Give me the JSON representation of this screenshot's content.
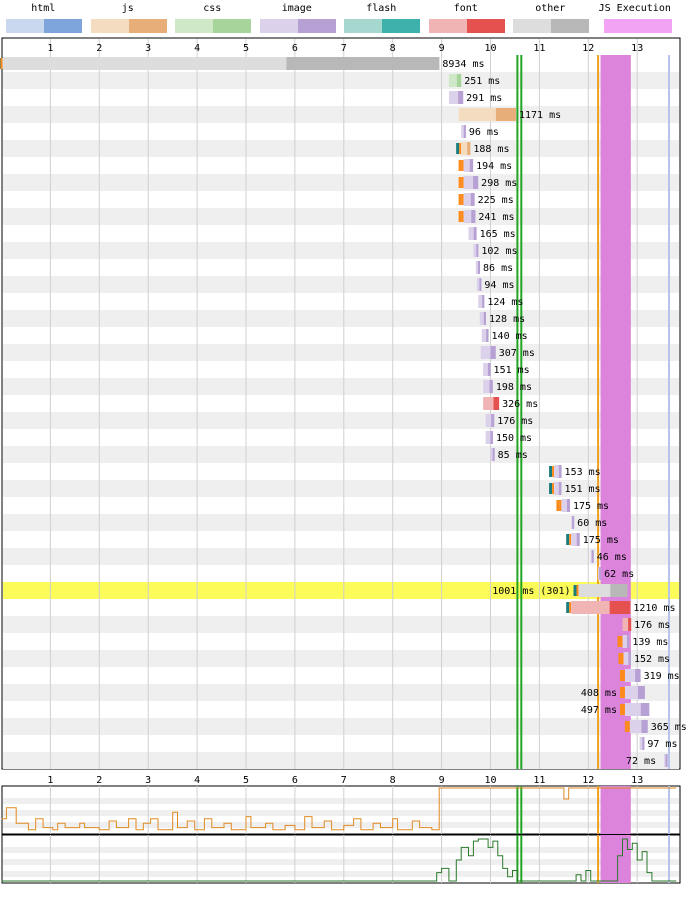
{
  "legend": [
    {
      "label": "html",
      "colors": [
        "#c9d8ee",
        "#7ea4dc"
      ]
    },
    {
      "label": "js",
      "colors": [
        "#f4dcc0",
        "#e8ae7a"
      ]
    },
    {
      "label": "css",
      "colors": [
        "#cfe8c7",
        "#a6d49a"
      ]
    },
    {
      "label": "image",
      "colors": [
        "#dcd1ea",
        "#b7a1d4"
      ]
    },
    {
      "label": "flash",
      "colors": [
        "#a6d8d0",
        "#3fb1ad"
      ]
    },
    {
      "label": "font",
      "colors": [
        "#f0b4b4",
        "#e4514f"
      ]
    },
    {
      "label": "other",
      "colors": [
        "#dddddd",
        "#b8b8b8"
      ]
    },
    {
      "label": "JS Execution",
      "colors": [
        "#f3a3f3",
        "#f3a3f3"
      ]
    }
  ],
  "colors": {
    "row_stripe": "#efefef",
    "grid": "#d0d0d0",
    "js_exec": "#dc84dc",
    "start_render": "#f0a020",
    "dom_content_loaded": "#23a423",
    "onload": "#b6c4ec",
    "highlight": "#fbfb5a",
    "cpu_line": "#e08a22",
    "bandwidth_line": "#2a7a2a",
    "connect": "#ff8a1c",
    "dns": "#1a7d7d",
    "wait": "#3a9d9d"
  },
  "chart_data": {
    "type": "waterfall",
    "x_unit": "seconds",
    "xlim": [
      0,
      13.8
    ],
    "x_ticks": [
      "1",
      "2",
      "3",
      "4",
      "5",
      "6",
      "7",
      "8",
      "9",
      "10",
      "11",
      "12",
      "13"
    ],
    "markers": {
      "dom_content_loaded": [
        10.55,
        10.63
      ],
      "start_render": 12.2,
      "js_execution": [
        12.25,
        12.87
      ],
      "onload": 13.65
    },
    "requests": [
      {
        "start": 0.02,
        "duration": 8.934,
        "label": "8934 ms",
        "type": "html",
        "pre": "dns"
      },
      {
        "start": 9.15,
        "duration": 0.251,
        "label": "251 ms",
        "type": "css"
      },
      {
        "start": 9.15,
        "duration": 0.291,
        "label": "291 ms",
        "type": "image"
      },
      {
        "start": 9.35,
        "duration": 1.171,
        "label": "1171 ms",
        "type": "js"
      },
      {
        "start": 9.4,
        "duration": 0.096,
        "label": "96 ms",
        "type": "image"
      },
      {
        "start": 9.4,
        "duration": 0.188,
        "label": "188 ms",
        "type": "js",
        "pre": "dns"
      },
      {
        "start": 9.45,
        "duration": 0.194,
        "label": "194 ms",
        "type": "image",
        "pre": "connect"
      },
      {
        "start": 9.45,
        "duration": 0.298,
        "label": "298 ms",
        "type": "image",
        "pre": "connect"
      },
      {
        "start": 9.45,
        "duration": 0.225,
        "label": "225 ms",
        "type": "image",
        "pre": "connect"
      },
      {
        "start": 9.45,
        "duration": 0.241,
        "label": "241 ms",
        "type": "image",
        "pre": "connect"
      },
      {
        "start": 9.55,
        "duration": 0.165,
        "label": "165 ms",
        "type": "image"
      },
      {
        "start": 9.65,
        "duration": 0.102,
        "label": "102 ms",
        "type": "image"
      },
      {
        "start": 9.7,
        "duration": 0.086,
        "label": "86 ms",
        "type": "image"
      },
      {
        "start": 9.72,
        "duration": 0.094,
        "label": "94 ms",
        "type": "image"
      },
      {
        "start": 9.75,
        "duration": 0.124,
        "label": "124 ms",
        "type": "image"
      },
      {
        "start": 9.78,
        "duration": 0.128,
        "label": "128 ms",
        "type": "image"
      },
      {
        "start": 9.82,
        "duration": 0.14,
        "label": "140 ms",
        "type": "image"
      },
      {
        "start": 9.8,
        "duration": 0.307,
        "label": "307 ms",
        "type": "image"
      },
      {
        "start": 9.85,
        "duration": 0.151,
        "label": "151 ms",
        "type": "image"
      },
      {
        "start": 9.85,
        "duration": 0.198,
        "label": "198 ms",
        "type": "image"
      },
      {
        "start": 9.85,
        "duration": 0.326,
        "label": "326 ms",
        "type": "font"
      },
      {
        "start": 9.9,
        "duration": 0.176,
        "label": "176 ms",
        "type": "image"
      },
      {
        "start": 9.9,
        "duration": 0.15,
        "label": "150 ms",
        "type": "image"
      },
      {
        "start": 10.0,
        "duration": 0.085,
        "label": "85 ms",
        "type": "image"
      },
      {
        "start": 11.3,
        "duration": 0.153,
        "label": "153 ms",
        "type": "image",
        "pre": "dns"
      },
      {
        "start": 11.3,
        "duration": 0.151,
        "label": "151 ms",
        "type": "image",
        "pre": "dns"
      },
      {
        "start": 11.45,
        "duration": 0.175,
        "label": "175 ms",
        "type": "image",
        "pre": "connect"
      },
      {
        "start": 11.65,
        "duration": 0.06,
        "label": "60 ms",
        "type": "image"
      },
      {
        "start": 11.65,
        "duration": 0.175,
        "label": "175 ms",
        "type": "image",
        "pre": "dns"
      },
      {
        "start": 12.05,
        "duration": 0.046,
        "label": "46 ms",
        "type": "image"
      },
      {
        "start": 12.2,
        "duration": 0.062,
        "label": "62 ms",
        "type": "image"
      },
      {
        "start": 11.8,
        "duration": 1.001,
        "label": "1001 ms (301)",
        "type": "html",
        "pre": "dns",
        "highlight": true,
        "label_left": true
      },
      {
        "start": 11.65,
        "duration": 1.21,
        "label": "1210 ms",
        "type": "font",
        "pre": "dns"
      },
      {
        "start": 12.7,
        "duration": 0.176,
        "label": "176 ms",
        "type": "font"
      },
      {
        "start": 12.7,
        "duration": 0.139,
        "label": "139 ms",
        "type": "image",
        "pre": "connect"
      },
      {
        "start": 12.72,
        "duration": 0.152,
        "label": "152 ms",
        "type": "image",
        "pre": "connect"
      },
      {
        "start": 12.75,
        "duration": 0.319,
        "label": "319 ms",
        "type": "image",
        "pre": "connect"
      },
      {
        "start": 12.75,
        "duration": 0.408,
        "label": "408 ms",
        "type": "image",
        "pre": "connect",
        "label_left": true
      },
      {
        "start": 12.75,
        "duration": 0.497,
        "label": "497 ms",
        "type": "image",
        "pre": "connect",
        "label_left": true
      },
      {
        "start": 12.85,
        "duration": 0.365,
        "label": "365 ms",
        "type": "image",
        "pre": "connect"
      },
      {
        "start": 13.05,
        "duration": 0.097,
        "label": "97 ms",
        "type": "image"
      },
      {
        "start": 13.55,
        "duration": 0.072,
        "label": "72 ms",
        "type": "image",
        "label_left": true
      }
    ],
    "cpu_series": [
      [
        0,
        0.3
      ],
      [
        0.1,
        0.3
      ],
      [
        0.1,
        0.55
      ],
      [
        0.3,
        0.55
      ],
      [
        0.3,
        0.2
      ],
      [
        0.55,
        0.2
      ],
      [
        0.55,
        0.05
      ],
      [
        0.7,
        0.05
      ],
      [
        0.7,
        0.3
      ],
      [
        0.85,
        0.3
      ],
      [
        0.85,
        0.1
      ],
      [
        1.05,
        0.1
      ],
      [
        1.05,
        0.05
      ],
      [
        1.15,
        0.05
      ],
      [
        1.15,
        0.2
      ],
      [
        1.3,
        0.2
      ],
      [
        1.3,
        0.1
      ],
      [
        1.6,
        0.1
      ],
      [
        1.6,
        0.2
      ],
      [
        1.7,
        0.2
      ],
      [
        1.7,
        0.1
      ],
      [
        2.0,
        0.1
      ],
      [
        2.0,
        0.05
      ],
      [
        2.2,
        0.05
      ],
      [
        2.2,
        0.25
      ],
      [
        2.35,
        0.25
      ],
      [
        2.35,
        0.1
      ],
      [
        2.6,
        0.1
      ],
      [
        2.6,
        0.3
      ],
      [
        2.75,
        0.3
      ],
      [
        2.75,
        0.05
      ],
      [
        2.9,
        0.05
      ],
      [
        2.9,
        0.2
      ],
      [
        3.05,
        0.2
      ],
      [
        3.05,
        0.3
      ],
      [
        3.2,
        0.3
      ],
      [
        3.2,
        0.05
      ],
      [
        3.5,
        0.05
      ],
      [
        3.5,
        0.45
      ],
      [
        3.6,
        0.45
      ],
      [
        3.6,
        0.1
      ],
      [
        3.8,
        0.1
      ],
      [
        3.8,
        0.25
      ],
      [
        3.95,
        0.25
      ],
      [
        3.95,
        0.05
      ],
      [
        4.15,
        0.05
      ],
      [
        4.15,
        0.3
      ],
      [
        4.3,
        0.3
      ],
      [
        4.3,
        0.1
      ],
      [
        4.55,
        0.1
      ],
      [
        4.55,
        0.2
      ],
      [
        4.7,
        0.2
      ],
      [
        4.7,
        0.05
      ],
      [
        5.0,
        0.05
      ],
      [
        5.0,
        0.35
      ],
      [
        5.1,
        0.35
      ],
      [
        5.1,
        0.1
      ],
      [
        5.4,
        0.1
      ],
      [
        5.4,
        0.2
      ],
      [
        5.55,
        0.2
      ],
      [
        5.55,
        0.05
      ],
      [
        5.8,
        0.05
      ],
      [
        5.8,
        0.15
      ],
      [
        6.0,
        0.15
      ],
      [
        6.0,
        0.05
      ],
      [
        6.2,
        0.05
      ],
      [
        6.2,
        0.35
      ],
      [
        6.35,
        0.35
      ],
      [
        6.35,
        0.1
      ],
      [
        6.6,
        0.1
      ],
      [
        6.6,
        0.25
      ],
      [
        6.75,
        0.25
      ],
      [
        6.75,
        0.05
      ],
      [
        7.0,
        0.05
      ],
      [
        7.0,
        0.15
      ],
      [
        7.2,
        0.15
      ],
      [
        7.2,
        0.3
      ],
      [
        7.35,
        0.3
      ],
      [
        7.35,
        0.05
      ],
      [
        7.6,
        0.05
      ],
      [
        7.6,
        0.2
      ],
      [
        7.75,
        0.2
      ],
      [
        7.75,
        0.1
      ],
      [
        8.0,
        0.1
      ],
      [
        8.0,
        0.3
      ],
      [
        8.1,
        0.3
      ],
      [
        8.1,
        0.05
      ],
      [
        8.4,
        0.05
      ],
      [
        8.4,
        0.25
      ],
      [
        8.55,
        0.25
      ],
      [
        8.55,
        0.1
      ],
      [
        8.8,
        0.1
      ],
      [
        8.8,
        0.05
      ],
      [
        8.95,
        0.05
      ],
      [
        8.95,
        1.0
      ],
      [
        11.5,
        1.0
      ],
      [
        11.5,
        0.75
      ],
      [
        11.6,
        0.75
      ],
      [
        11.6,
        1.0
      ],
      [
        13.8,
        1.0
      ]
    ],
    "bandwidth_series": [
      [
        0,
        0
      ],
      [
        8.9,
        0
      ],
      [
        8.9,
        0.2
      ],
      [
        9.0,
        0.2
      ],
      [
        9.0,
        0.3
      ],
      [
        9.15,
        0.3
      ],
      [
        9.15,
        0.0
      ],
      [
        9.3,
        0.0
      ],
      [
        9.3,
        0.5
      ],
      [
        9.4,
        0.5
      ],
      [
        9.4,
        0.8
      ],
      [
        9.55,
        0.8
      ],
      [
        9.55,
        0.6
      ],
      [
        9.65,
        0.6
      ],
      [
        9.65,
        0.95
      ],
      [
        9.75,
        0.95
      ],
      [
        9.75,
        1.0
      ],
      [
        9.95,
        1.0
      ],
      [
        9.95,
        0.8
      ],
      [
        10.05,
        0.8
      ],
      [
        10.05,
        0.95
      ],
      [
        10.15,
        0.95
      ],
      [
        10.15,
        0.6
      ],
      [
        10.25,
        0.6
      ],
      [
        10.25,
        0.3
      ],
      [
        10.35,
        0.3
      ],
      [
        10.35,
        0.1
      ],
      [
        10.45,
        0.1
      ],
      [
        10.45,
        0.25
      ],
      [
        10.55,
        0.25
      ],
      [
        10.55,
        0.0
      ],
      [
        11.75,
        0.0
      ],
      [
        11.75,
        0.15
      ],
      [
        11.85,
        0.15
      ],
      [
        11.85,
        0.0
      ],
      [
        11.95,
        0.0
      ],
      [
        11.95,
        0.25
      ],
      [
        12.05,
        0.25
      ],
      [
        12.05,
        0.0
      ],
      [
        12.6,
        0.0
      ],
      [
        12.6,
        0.6
      ],
      [
        12.7,
        0.6
      ],
      [
        12.7,
        1.0
      ],
      [
        12.8,
        1.0
      ],
      [
        12.8,
        0.75
      ],
      [
        12.9,
        0.75
      ],
      [
        12.9,
        0.9
      ],
      [
        13.0,
        0.9
      ],
      [
        13.0,
        0.5
      ],
      [
        13.1,
        0.5
      ],
      [
        13.1,
        0.7
      ],
      [
        13.2,
        0.7
      ],
      [
        13.2,
        0.2
      ],
      [
        13.3,
        0.2
      ],
      [
        13.3,
        0.0
      ],
      [
        13.8,
        0.0
      ]
    ]
  }
}
